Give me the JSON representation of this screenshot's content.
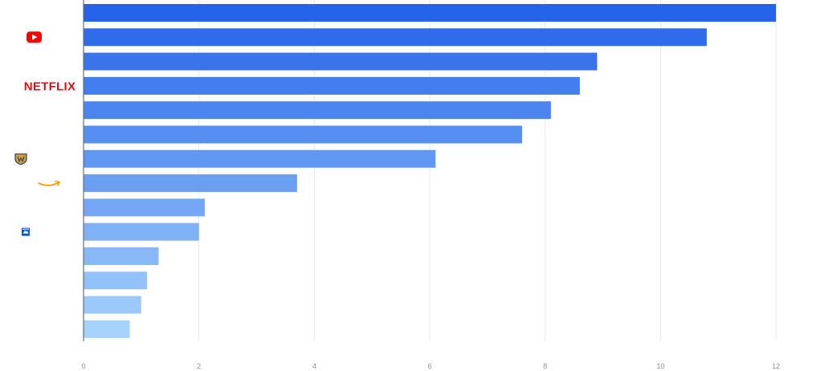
{
  "chart_data": {
    "type": "bar",
    "orientation": "horizontal",
    "title": "",
    "xlabel": "",
    "ylabel": "",
    "xlim": [
      0,
      12
    ],
    "grid": true,
    "x_ticks": [
      "0",
      "2",
      "4",
      "6",
      "8",
      "10",
      "12"
    ],
    "categories": [
      "",
      "YouTube",
      "",
      "Netflix",
      "",
      "",
      "Warner Bros.",
      "Amazon",
      "",
      "Paramount",
      "",
      "",
      "",
      ""
    ],
    "values": [
      12.0,
      10.8,
      8.9,
      8.6,
      8.1,
      7.6,
      6.1,
      3.7,
      2.1,
      2.0,
      1.3,
      1.1,
      1.0,
      0.8
    ],
    "logos": [
      "",
      "youtube-logo",
      "",
      "netflix-logo",
      "",
      "",
      "warner-bros-logo",
      "amazon-logo",
      "",
      "paramount-logo",
      "",
      "",
      "",
      ""
    ],
    "netflix_wordmark": "NETFLIX",
    "colors": {
      "bar_start": "#2563eb",
      "bar_end": "#a5d3fb",
      "grid": "#e8e9ec",
      "axis": "#6b6f76",
      "tick_label": "#8a8f98",
      "youtube": "#ff0000",
      "netflix": "#e50914",
      "amazon": "#ff9900",
      "warner": "#d9a520",
      "paramount": "#0b56c9"
    }
  }
}
